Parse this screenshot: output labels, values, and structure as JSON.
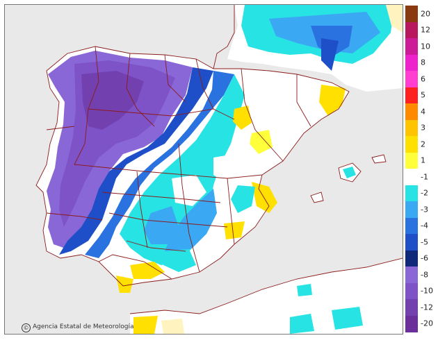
{
  "map": {
    "credit": "Agencia Estatal de Meteorología",
    "credit_symbol": "©"
  },
  "legend": {
    "labels": [
      "20",
      "12",
      "10",
      "8",
      "6",
      "5",
      "4",
      "3",
      "2",
      "1",
      "-1",
      "-2",
      "-3",
      "-4",
      "-5",
      "-6",
      "-8",
      "-10",
      "-12",
      "-20"
    ],
    "colors": [
      "#8b3a0f",
      "#b8185e",
      "#cc1a99",
      "#ee22cc",
      "#ff3fd0",
      "#ff2020",
      "#ff8a00",
      "#ffc400",
      "#ffe000",
      "#ffff3c",
      "#ffffff",
      "#27e3e3",
      "#3aa8f2",
      "#2a72e0",
      "#1f4fc8",
      "#10287a",
      "#8a67d6",
      "#7e53c8",
      "#7340b0",
      "#6a2f9a"
    ]
  },
  "colors": {
    "land_neutral": "#ffffff",
    "sea": "#e9e9e9",
    "boundary": "#8b1a1a"
  }
}
